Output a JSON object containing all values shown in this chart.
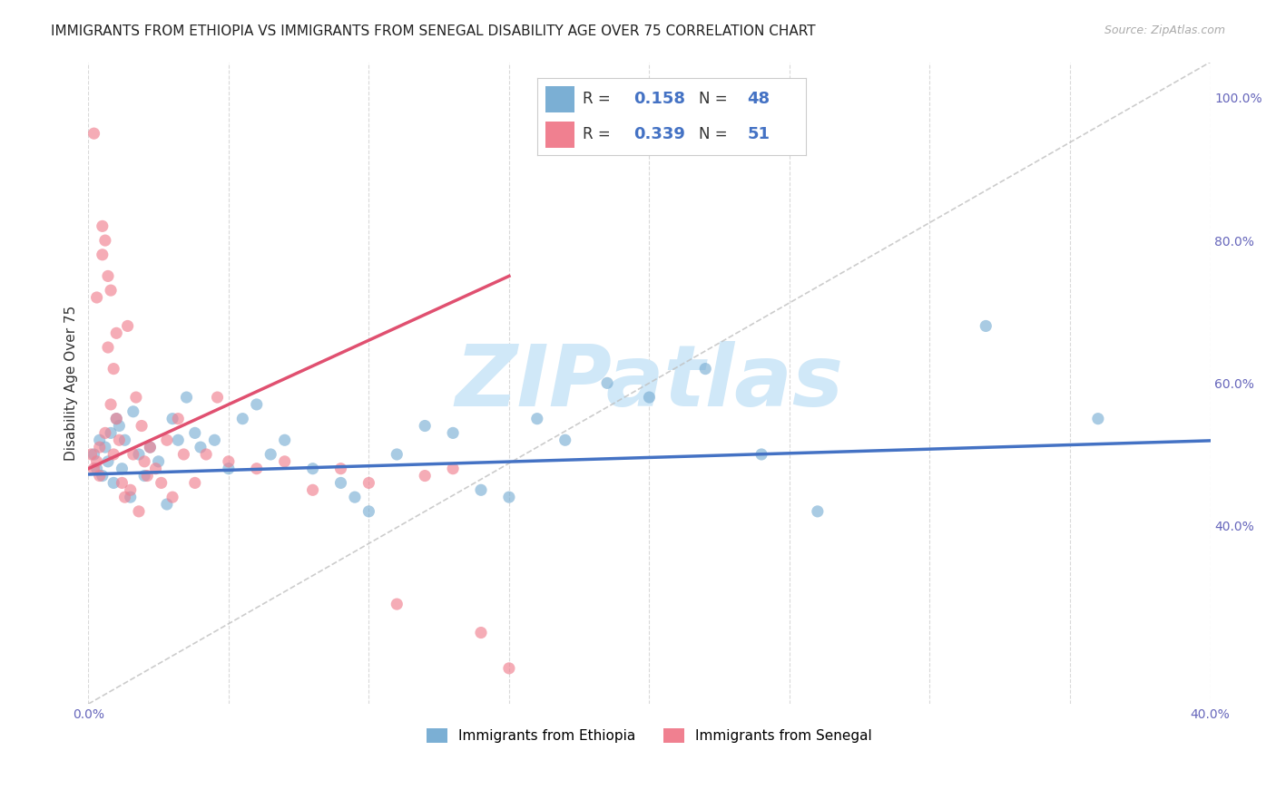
{
  "title": "IMMIGRANTS FROM ETHIOPIA VS IMMIGRANTS FROM SENEGAL DISABILITY AGE OVER 75 CORRELATION CHART",
  "source": "Source: ZipAtlas.com",
  "ylabel": "Disability Age Over 75",
  "xlim": [
    0.0,
    0.4
  ],
  "ylim": [
    0.15,
    1.05
  ],
  "legend_ethiopia": {
    "R": 0.158,
    "N": 48
  },
  "legend_senegal": {
    "R": 0.339,
    "N": 51
  },
  "ethiopia_color": "#7bafd4",
  "senegal_color": "#f08090",
  "reg_line_ethiopia_color": "#4472c4",
  "reg_line_senegal_color": "#e05070",
  "background_color": "#ffffff",
  "grid_color": "#d0d0d0",
  "watermark_text": "ZIPatlas",
  "watermark_color": "#d0e8f8",
  "ethiopia_x": [
    0.002,
    0.003,
    0.004,
    0.005,
    0.006,
    0.007,
    0.008,
    0.009,
    0.01,
    0.011,
    0.012,
    0.013,
    0.015,
    0.016,
    0.018,
    0.02,
    0.022,
    0.025,
    0.028,
    0.03,
    0.032,
    0.035,
    0.038,
    0.04,
    0.045,
    0.05,
    0.055,
    0.06,
    0.065,
    0.07,
    0.08,
    0.09,
    0.095,
    0.1,
    0.11,
    0.12,
    0.13,
    0.14,
    0.15,
    0.16,
    0.17,
    0.185,
    0.2,
    0.22,
    0.24,
    0.26,
    0.32,
    0.36
  ],
  "ethiopia_y": [
    0.5,
    0.48,
    0.52,
    0.47,
    0.51,
    0.49,
    0.53,
    0.46,
    0.55,
    0.54,
    0.48,
    0.52,
    0.44,
    0.56,
    0.5,
    0.47,
    0.51,
    0.49,
    0.43,
    0.55,
    0.52,
    0.58,
    0.53,
    0.51,
    0.52,
    0.48,
    0.55,
    0.57,
    0.5,
    0.52,
    0.48,
    0.46,
    0.44,
    0.42,
    0.5,
    0.54,
    0.53,
    0.45,
    0.44,
    0.55,
    0.52,
    0.6,
    0.58,
    0.62,
    0.5,
    0.42,
    0.68,
    0.55
  ],
  "senegal_x": [
    0.001,
    0.002,
    0.002,
    0.003,
    0.003,
    0.004,
    0.004,
    0.005,
    0.005,
    0.006,
    0.006,
    0.007,
    0.007,
    0.008,
    0.008,
    0.009,
    0.009,
    0.01,
    0.01,
    0.011,
    0.012,
    0.013,
    0.014,
    0.015,
    0.016,
    0.017,
    0.018,
    0.019,
    0.02,
    0.021,
    0.022,
    0.024,
    0.026,
    0.028,
    0.03,
    0.032,
    0.034,
    0.038,
    0.042,
    0.046,
    0.05,
    0.06,
    0.07,
    0.08,
    0.09,
    0.1,
    0.11,
    0.12,
    0.13,
    0.14,
    0.15
  ],
  "senegal_y": [
    0.5,
    0.48,
    0.95,
    0.49,
    0.72,
    0.47,
    0.51,
    0.82,
    0.78,
    0.53,
    0.8,
    0.65,
    0.75,
    0.57,
    0.73,
    0.62,
    0.5,
    0.55,
    0.67,
    0.52,
    0.46,
    0.44,
    0.68,
    0.45,
    0.5,
    0.58,
    0.42,
    0.54,
    0.49,
    0.47,
    0.51,
    0.48,
    0.46,
    0.52,
    0.44,
    0.55,
    0.5,
    0.46,
    0.5,
    0.58,
    0.49,
    0.48,
    0.49,
    0.45,
    0.48,
    0.46,
    0.29,
    0.47,
    0.48,
    0.25,
    0.2
  ],
  "title_fontsize": 11,
  "axis_label_fontsize": 11,
  "tick_fontsize": 10,
  "legend_fontsize": 13
}
